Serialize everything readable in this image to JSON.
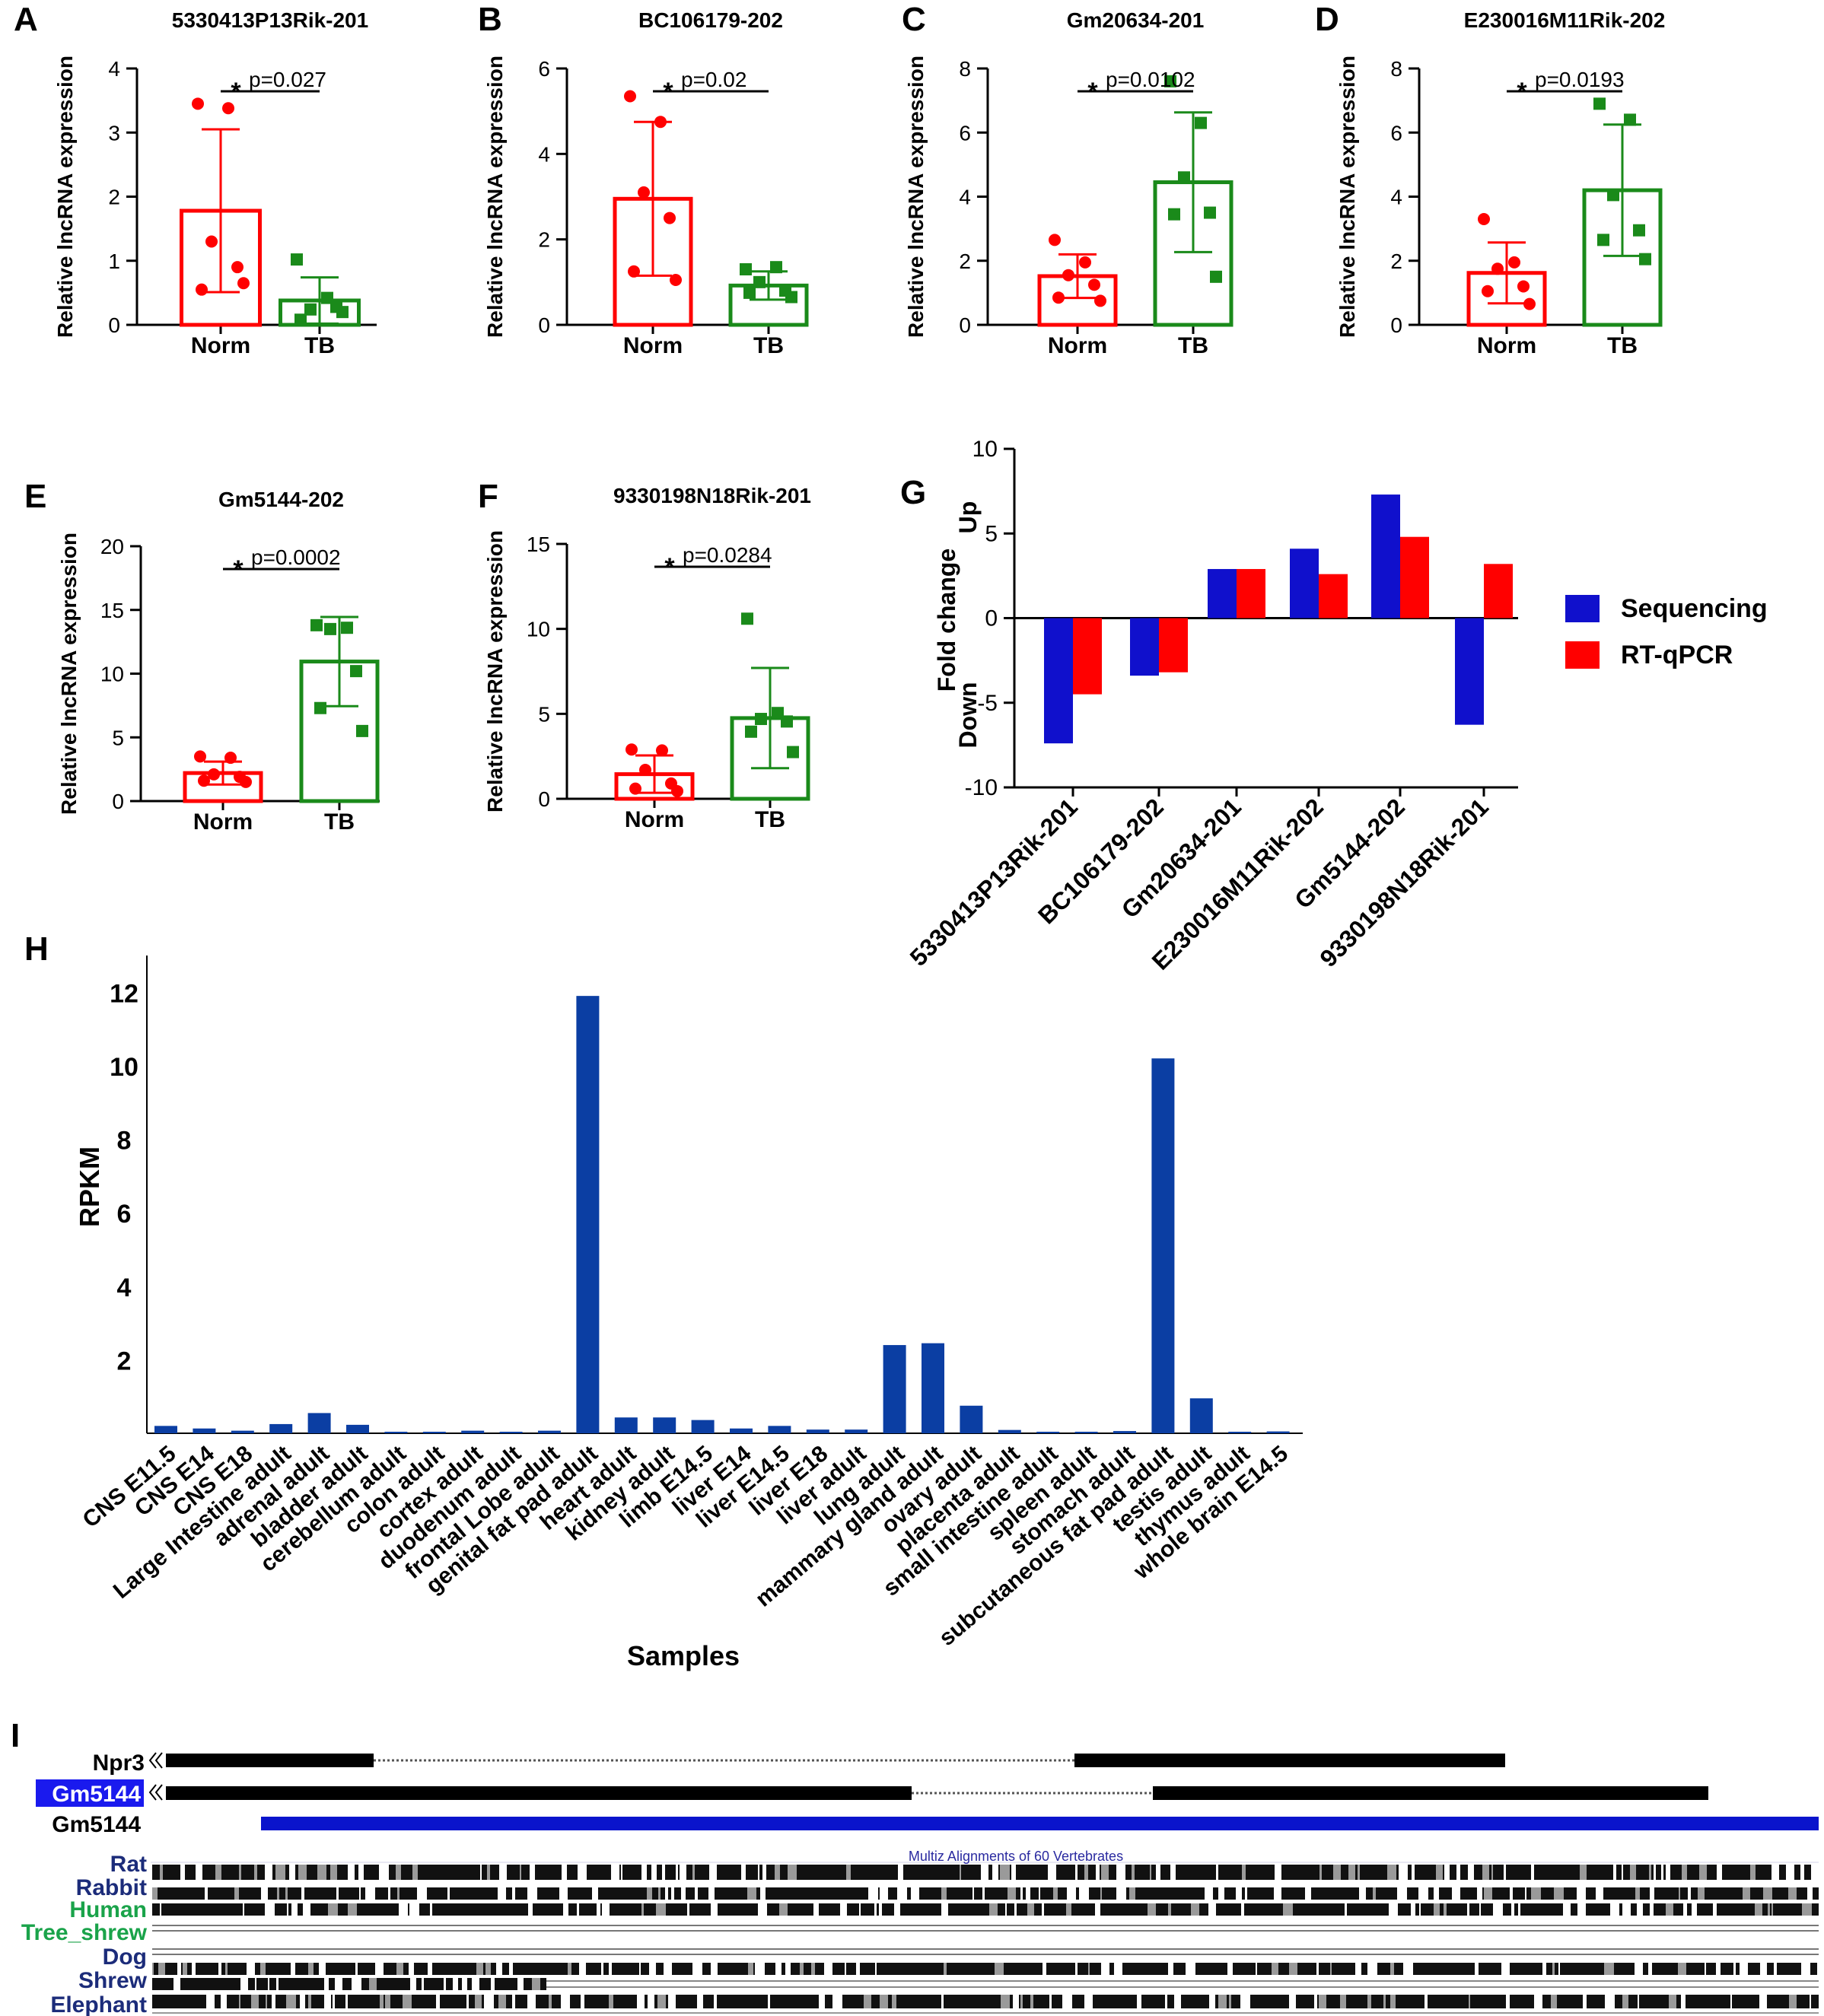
{
  "colors": {
    "norm": "#ff0000",
    "tb": "#1a8a1a",
    "sequencing": "#1010cc",
    "rtqpcr": "#ff0000",
    "rpkm": "#0b3ea3",
    "track_blue": "#0a14cc",
    "species_navy": "#1c2c7a",
    "species_green": "#1aa34a",
    "gene_highlight": "#1a1aee"
  },
  "chart_data": [
    {
      "panel": "A",
      "type": "bar",
      "title": "5330413P13Rik-201",
      "ylabel": "Relative lncRNA expression",
      "categories": [
        "Norm",
        "TB"
      ],
      "ylim": [
        0,
        4
      ],
      "yticks": [
        0,
        1,
        2,
        3,
        4
      ],
      "means": [
        1.78,
        0.38
      ],
      "sd": [
        1.27,
        0.36
      ],
      "points": [
        [
          3.45,
          3.38,
          1.3,
          0.9,
          0.55,
          0.65
        ],
        [
          1.02,
          0.42,
          0.24,
          0.28,
          0.08,
          0.2
        ]
      ],
      "significance": "*",
      "p_label": "p=0.027"
    },
    {
      "panel": "B",
      "type": "bar",
      "title": "BC106179-202",
      "ylabel": "Relative lncRNA expression",
      "categories": [
        "Norm",
        "TB"
      ],
      "ylim": [
        0,
        6
      ],
      "yticks": [
        0,
        2,
        4,
        6
      ],
      "means": [
        2.95,
        0.92
      ],
      "sd": [
        1.8,
        0.33
      ],
      "points": [
        [
          5.35,
          4.75,
          3.1,
          2.5,
          1.25,
          1.05
        ],
        [
          1.3,
          1.35,
          1.0,
          0.8,
          0.75,
          0.65
        ]
      ],
      "significance": "*",
      "p_label": "p=0.02"
    },
    {
      "panel": "C",
      "type": "bar",
      "title": "Gm20634-201",
      "ylabel": "Relative lncRNA expression",
      "categories": [
        "Norm",
        "TB"
      ],
      "ylim": [
        0,
        8
      ],
      "yticks": [
        0,
        2,
        4,
        6,
        8
      ],
      "means": [
        1.52,
        4.45
      ],
      "sd": [
        0.68,
        2.18
      ],
      "points": [
        [
          2.65,
          1.95,
          1.55,
          1.25,
          0.85,
          0.75
        ],
        [
          7.6,
          6.3,
          4.6,
          3.5,
          3.45,
          1.5
        ]
      ],
      "significance": "*",
      "p_label": "p=0.0102"
    },
    {
      "panel": "D",
      "type": "bar",
      "title": "E230016M11Rik-202",
      "ylabel": "Relative lncRNA expression",
      "categories": [
        "Norm",
        "TB"
      ],
      "ylim": [
        0,
        8
      ],
      "yticks": [
        0,
        2,
        4,
        6,
        8
      ],
      "means": [
        1.62,
        4.2
      ],
      "sd": [
        0.95,
        2.05
      ],
      "points": [
        [
          3.3,
          1.95,
          1.75,
          1.2,
          1.05,
          0.65
        ],
        [
          6.9,
          6.4,
          4.05,
          2.95,
          2.65,
          2.05
        ]
      ],
      "significance": "*",
      "p_label": "p=0.0193"
    },
    {
      "panel": "E",
      "type": "bar",
      "title": "Gm5144-202",
      "ylabel": "Relative lncRNA expression",
      "categories": [
        "Norm",
        "TB"
      ],
      "ylim": [
        0,
        20
      ],
      "yticks": [
        0,
        5,
        10,
        15,
        20
      ],
      "means": [
        2.2,
        10.95
      ],
      "sd": [
        0.9,
        3.5
      ],
      "points": [
        [
          3.5,
          3.4,
          2.1,
          1.9,
          1.6,
          1.5
        ],
        [
          13.8,
          13.6,
          13.5,
          10.2,
          7.3,
          5.5
        ]
      ],
      "significance": "*",
      "p_label": "p=0.0002"
    },
    {
      "panel": "F",
      "type": "bar",
      "title": "9330198N18Rik-201",
      "ylabel": "Relative lncRNA expression",
      "categories": [
        "Norm",
        "TB"
      ],
      "ylim": [
        0,
        15
      ],
      "yticks": [
        0,
        5,
        10,
        15
      ],
      "means": [
        1.45,
        4.75
      ],
      "sd": [
        1.1,
        2.95
      ],
      "points": [
        [
          2.9,
          2.85,
          1.7,
          0.9,
          0.6,
          0.45
        ],
        [
          10.6,
          5.05,
          4.7,
          4.55,
          3.95,
          2.75
        ]
      ],
      "significance": "*",
      "p_label": "p=0.0284"
    },
    {
      "panel": "G",
      "type": "bar",
      "ylabel": "Fold change",
      "ylabel_up": "Up",
      "ylabel_down": "Down",
      "categories": [
        "5330413P13Rik-201",
        "BC106179-202",
        "Gm20634-201",
        "E230016M11Rik-202",
        "Gm5144-202",
        "9330198N18Rik-201"
      ],
      "ylim": [
        -10,
        10
      ],
      "yticks": [
        -10,
        -5,
        0,
        5,
        10
      ],
      "series": [
        {
          "name": "Sequencing",
          "values": [
            -7.4,
            -3.4,
            2.9,
            4.1,
            7.3,
            -6.3
          ]
        },
        {
          "name": "RT-qPCR",
          "values": [
            -4.5,
            -3.2,
            2.9,
            2.6,
            4.8,
            3.2
          ]
        }
      ],
      "legend_position": "right"
    },
    {
      "panel": "H",
      "type": "bar",
      "xlabel": "Samples",
      "ylabel": "RPKM",
      "ylim": [
        0,
        13
      ],
      "yticks": [
        2,
        4,
        6,
        8,
        10,
        12
      ],
      "categories": [
        "CNS E11.5",
        "CNS E14",
        "CNS E18",
        "Large Intestine adult",
        "adrenal adult",
        "bladder adult",
        "cerebellum adult",
        "colon adult",
        "cortex adult",
        "duodenum adult",
        "frontal Lobe adult",
        "genital fat pad adult",
        "heart adult",
        "kidney adult",
        "limb E14.5",
        "liver E14",
        "liver E14.5",
        "liver E18",
        "liver adult",
        "lung adult",
        "mammary gland adult",
        "ovary adult",
        "placenta adult",
        "small intestine adult",
        "spleen adult",
        "stomach adult",
        "subcutaneous fat pad adult",
        "testis adult",
        "thymus adult",
        "whole brain E14.5"
      ],
      "values": [
        0.2,
        0.13,
        0.07,
        0.25,
        0.55,
        0.23,
        0.01,
        0.01,
        0.07,
        0.02,
        0.07,
        11.9,
        0.43,
        0.43,
        0.36,
        0.13,
        0.2,
        0.1,
        0.1,
        2.4,
        2.45,
        0.75,
        0.09,
        0.01,
        0.01,
        0.06,
        10.2,
        0.95,
        0.03,
        0.05
      ]
    }
  ],
  "panel_labels": [
    "A",
    "B",
    "C",
    "D",
    "E",
    "F",
    "G",
    "H",
    "I"
  ],
  "browser": {
    "genes": [
      "Npr3",
      "Gm5144",
      "Gm5144"
    ],
    "conservation_title": "Multiz Alignments of 60 Vertebrates",
    "species": [
      "Rat",
      "Rabbit",
      "Human",
      "Tree_shrew",
      "Dog",
      "Shrew",
      "Elephant"
    ]
  }
}
